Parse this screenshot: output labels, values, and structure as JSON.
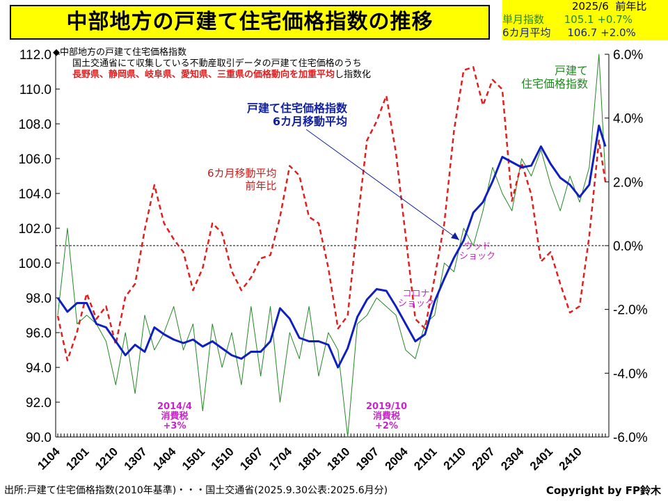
{
  "title": "中部地方の戸建て住宅価格指数の推移",
  "info_box": {
    "period": "2025/6",
    "yoy_header": "前年比",
    "monthly_label": "単月指数",
    "monthly_value": "105.1",
    "monthly_yoy": "+0.7%",
    "avg_label": "6カ月平均",
    "avg_value": "106.7",
    "avg_yoy": "+2.0%"
  },
  "notes": {
    "line1": "◆中部地方の戸建て住宅価格指数",
    "line2": "国土交通省にて収集している不動産取引データの戸建て住宅価格のうち",
    "line3_red": "長野県、静岡県、岐阜県、愛知県、三重県の価格動向を加重平均",
    "line3_black": "し指数化"
  },
  "labels": {
    "yoy_line1": "6カ月移動平均",
    "yoy_line2": "前年比",
    "avg_line1": "戸建て住宅価格指数",
    "avg_line2": "6カ月移動平均",
    "monthly_line1": "戸建て",
    "monthly_line2": "住宅価格指数",
    "wood1": "ウッド",
    "wood2": "ショック",
    "corona1": "コロナ",
    "corona2": "ショック",
    "tax1_1": "2014/4",
    "tax1_2": "消費税",
    "tax1_3": "+3%",
    "tax2_1": "2019/10",
    "tax2_2": "消費税",
    "tax2_3": "+2%"
  },
  "footer": "出所:戸建て住宅価格指数(2010年基準)・・・国土交通省(2025.9.30公表:2025.6月分)",
  "copyright": "Copyright by FP鈴木",
  "colors": {
    "monthly": "#228822",
    "avg": "#1020c0",
    "yoy": "#e02020",
    "highlight": "#ffff00",
    "annotation": "#cc22cc"
  },
  "chart_data": {
    "type": "line",
    "x_start": "2011/04",
    "x_end": "2025/06",
    "x_step_months": 3,
    "x_tick_labels": [
      "1104",
      "1201",
      "1210",
      "1307",
      "1404",
      "1501",
      "1510",
      "1607",
      "1704",
      "1801",
      "1810",
      "1907",
      "2004",
      "2101",
      "2110",
      "2207",
      "2304",
      "2401",
      "2410"
    ],
    "y_left": {
      "ticks": [
        "90.0",
        "92.0",
        "94.0",
        "96.0",
        "98.0",
        "100.0",
        "102.0",
        "104.0",
        "106.0",
        "108.0",
        "110.0",
        "112.0"
      ],
      "range": [
        90,
        112
      ]
    },
    "y_right": {
      "ticks": [
        "-6.0%",
        "-4.0%",
        "-2.0%",
        "0.0%",
        "2.0%",
        "4.0%",
        "6.0%"
      ],
      "range": [
        -6,
        6
      ]
    },
    "series": [
      {
        "name": "戸建て住宅価格指数",
        "axis": "left",
        "style": "thin-solid",
        "values": [
          97.0,
          102.0,
          96.5,
          97.0,
          96.5,
          95.5,
          93.0,
          96.0,
          92.5,
          97.0,
          95.0,
          96.0,
          97.5,
          95.0,
          96.5,
          91.5,
          96.5,
          94.0,
          96.0,
          93.0,
          97.5,
          93.5,
          97.5,
          92.0,
          96.0,
          94.5,
          97.5,
          93.5,
          96.0,
          95.0,
          90.0,
          96.5,
          97.0,
          98.0,
          97.5,
          97.0,
          95.0,
          94.5,
          96.5,
          97.0,
          100.0,
          99.5,
          102.0,
          101.0,
          103.0,
          105.5,
          104.0,
          103.0,
          106.0,
          105.0,
          106.5,
          104.5,
          103.0,
          105.0,
          103.5,
          105.5,
          112.0,
          105.1
        ]
      },
      {
        "name": "戸建て住宅価格指数 6カ月移動平均",
        "axis": "left",
        "style": "thick-solid",
        "values": [
          98.0,
          97.2,
          97.7,
          97.7,
          96.5,
          96.3,
          95.5,
          94.7,
          95.3,
          94.9,
          96.3,
          95.9,
          95.6,
          95.4,
          95.6,
          95.2,
          95.5,
          95.1,
          94.7,
          94.5,
          94.9,
          94.9,
          95.5,
          97.4,
          96.8,
          95.7,
          95.5,
          95.5,
          95.3,
          94.0,
          95.1,
          96.9,
          97.9,
          98.5,
          98.4,
          97.5,
          96.5,
          95.5,
          95.9,
          97.8,
          99.1,
          100.3,
          101.3,
          102.9,
          103.5,
          104.7,
          106.1,
          105.8,
          105.5,
          105.6,
          106.7,
          105.7,
          104.9,
          104.5,
          103.8,
          104.5,
          107.9,
          106.7
        ]
      },
      {
        "name": "6カ月移動平均 前年比",
        "axis": "right",
        "style": "dashed",
        "values": [
          -2.2,
          -3.6,
          -2.7,
          -1.5,
          -2.3,
          -1.9,
          -3.1,
          -1.6,
          -1.2,
          0.5,
          1.9,
          0.7,
          0.2,
          -0.2,
          -1.4,
          -0.7,
          0.7,
          0.4,
          -0.8,
          -1.4,
          -1.0,
          -0.4,
          -0.3,
          0.9,
          2.5,
          2.2,
          0.9,
          0.7,
          -0.7,
          -2.6,
          -2.2,
          0.7,
          3.3,
          3.9,
          4.7,
          2.9,
          0.3,
          -2.3,
          -2.6,
          -1.0,
          0.7,
          3.6,
          5.5,
          5.6,
          4.4,
          5.2,
          4.9,
          1.4,
          2.6,
          1.6,
          -0.5,
          -0.2,
          -1.2,
          -2.1,
          -1.9,
          0.3,
          3.3,
          2.0
        ]
      }
    ],
    "reference_line": {
      "axis": "right",
      "value": 0,
      "style": "dotted"
    }
  }
}
